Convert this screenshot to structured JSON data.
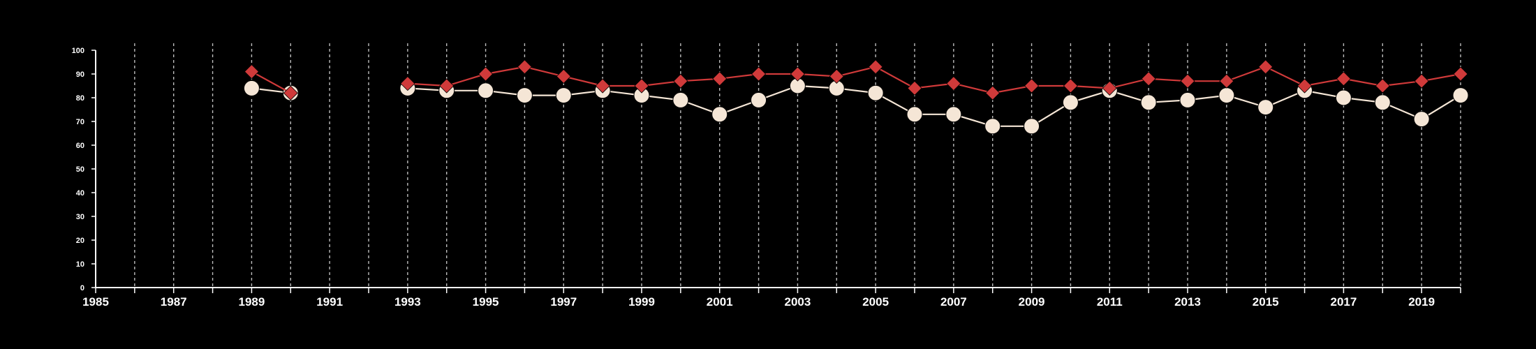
{
  "chart_data": {
    "type": "line",
    "title": "",
    "xlabel": "",
    "ylabel": "",
    "xlim": [
      1985,
      2020
    ],
    "ylim": [
      0,
      100
    ],
    "x_ticks": [
      1985,
      1987,
      1989,
      1991,
      1993,
      1995,
      1997,
      1999,
      2001,
      2003,
      2005,
      2007,
      2009,
      2011,
      2013,
      2015,
      2017,
      2019
    ],
    "y_ticks": [
      0,
      10,
      20,
      30,
      40,
      50,
      60,
      70,
      80,
      90,
      100
    ],
    "grid": "vertical dashed lines at each year",
    "background": "#000000",
    "series": [
      {
        "color": "#d03a3a",
        "marker": "diamond",
        "points": [
          [
            1989,
            91
          ],
          [
            1990,
            82
          ],
          [
            1993,
            86
          ],
          [
            1994,
            85
          ],
          [
            1995,
            90
          ],
          [
            1996,
            93
          ],
          [
            1997,
            89
          ],
          [
            1998,
            85
          ],
          [
            1999,
            85
          ],
          [
            2000,
            87
          ],
          [
            2001,
            88
          ],
          [
            2002,
            90
          ],
          [
            2003,
            90
          ],
          [
            2004,
            89
          ],
          [
            2005,
            93
          ],
          [
            2006,
            84
          ],
          [
            2007,
            86
          ],
          [
            2008,
            82
          ],
          [
            2009,
            85
          ],
          [
            2010,
            85
          ],
          [
            2011,
            84
          ],
          [
            2012,
            88
          ],
          [
            2013,
            87
          ],
          [
            2014,
            87
          ],
          [
            2015,
            93
          ],
          [
            2016,
            85
          ],
          [
            2017,
            88
          ],
          [
            2018,
            85
          ],
          [
            2019,
            87
          ],
          [
            2020,
            90
          ]
        ]
      },
      {
        "color": "#f5e6d6",
        "marker": "circle",
        "points": [
          [
            1989,
            84
          ],
          [
            1990,
            82
          ],
          [
            1993,
            84
          ],
          [
            1994,
            83
          ],
          [
            1995,
            83
          ],
          [
            1996,
            81
          ],
          [
            1997,
            81
          ],
          [
            1998,
            83
          ],
          [
            1999,
            81
          ],
          [
            2000,
            79
          ],
          [
            2001,
            73
          ],
          [
            2002,
            79
          ],
          [
            2003,
            85
          ],
          [
            2004,
            84
          ],
          [
            2005,
            82
          ],
          [
            2006,
            73
          ],
          [
            2007,
            73
          ],
          [
            2008,
            68
          ],
          [
            2009,
            68
          ],
          [
            2010,
            78
          ],
          [
            2011,
            83
          ],
          [
            2012,
            78
          ],
          [
            2013,
            79
          ],
          [
            2014,
            81
          ],
          [
            2015,
            76
          ],
          [
            2016,
            83
          ],
          [
            2017,
            80
          ],
          [
            2018,
            78
          ],
          [
            2019,
            71
          ],
          [
            2020,
            81
          ]
        ]
      }
    ]
  }
}
